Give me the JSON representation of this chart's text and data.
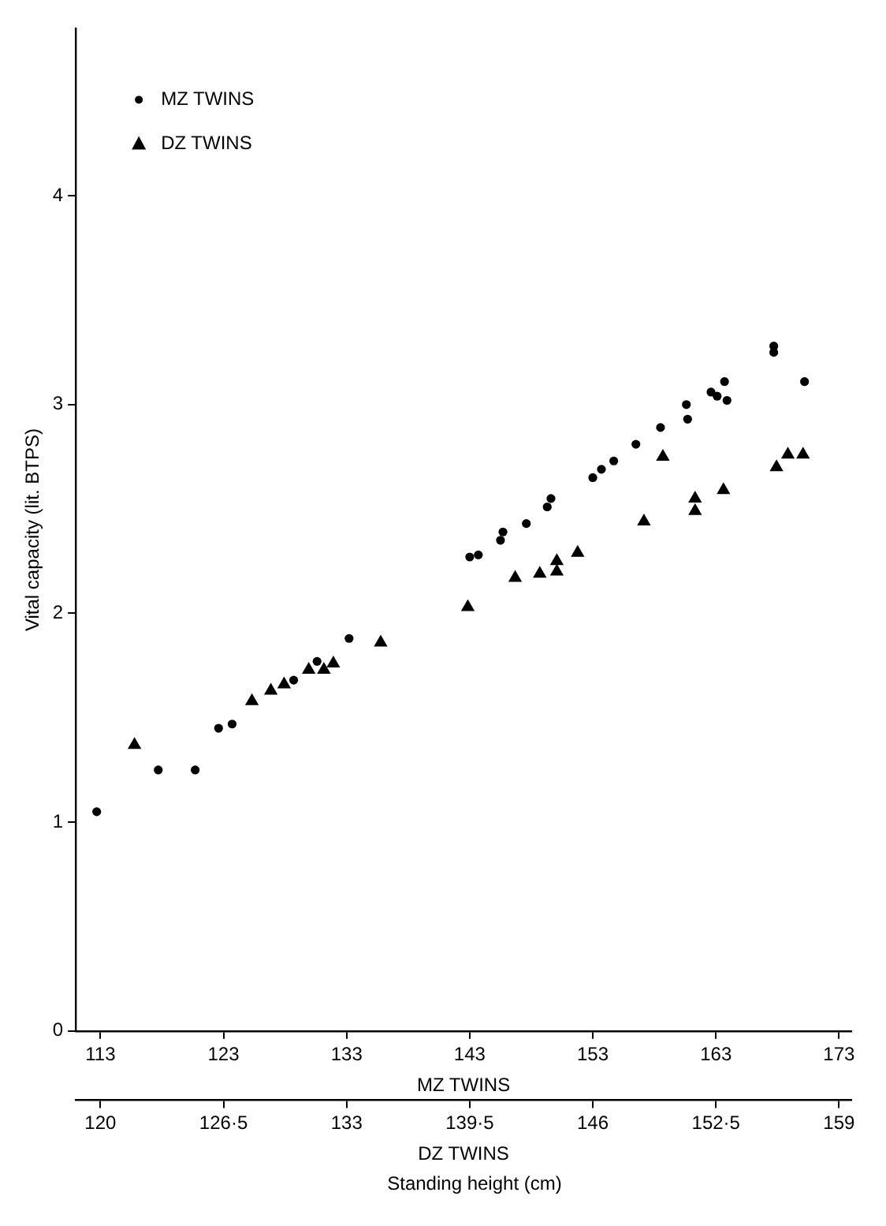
{
  "chart_data": {
    "type": "scatter",
    "ylabel": "Vital capacity (lit. BTPS)",
    "xlabel": "MZ TWINS",
    "x2label": "DZ TWINS",
    "annotations": [
      "Standing height (cm)"
    ],
    "xlim": [
      111,
      174
    ],
    "xticks": [
      113,
      123,
      133,
      143,
      153,
      163,
      173
    ],
    "x2lim": [
      118.7,
      159.65
    ],
    "x2ticks": [
      120,
      {
        "value": 126.5,
        "label": "126·5"
      },
      133,
      {
        "value": 139.5,
        "label": "139·5"
      },
      146,
      {
        "value": 152.5,
        "label": "152·5"
      },
      159
    ],
    "ylim": [
      0,
      4.8
    ],
    "yticks": [
      0,
      1,
      2,
      3,
      4
    ],
    "grid": false,
    "legend": "top left",
    "series": [
      {
        "name": "MZ TWINS",
        "color": "#000000",
        "marker": "circle",
        "x": [
          112.7,
          117.7,
          120.7,
          122.6,
          123.7,
          128.7,
          130.6,
          133.2,
          143.0,
          143.7,
          145.5,
          145.7,
          147.6,
          149.3,
          149.6,
          153.0,
          153.7,
          154.7,
          156.5,
          158.5,
          160.6,
          160.7,
          162.6,
          163.1,
          163.7,
          163.9,
          167.7,
          167.7,
          170.2
        ],
        "values": [
          1.05,
          1.25,
          1.25,
          1.45,
          1.47,
          1.68,
          1.77,
          1.88,
          2.27,
          2.28,
          2.35,
          2.39,
          2.43,
          2.51,
          2.55,
          2.65,
          2.69,
          2.73,
          2.81,
          2.89,
          3.0,
          2.93,
          3.06,
          3.04,
          3.11,
          3.02,
          3.28,
          3.25,
          3.11
        ]
      },
      {
        "name": "DZ TWINS",
        "color": "#000000",
        "marker": "triangle",
        "axis": "x2",
        "x": [
          121.8,
          128.0,
          129.0,
          129.7,
          131.0,
          131.8,
          132.3,
          134.8,
          139.4,
          141.9,
          143.2,
          144.1,
          144.1,
          145.2,
          148.7,
          149.7,
          151.4,
          151.4,
          152.9,
          155.7,
          156.3,
          157.1
        ],
        "values": [
          1.37,
          1.58,
          1.63,
          1.66,
          1.73,
          1.73,
          1.76,
          1.86,
          2.03,
          2.17,
          2.19,
          2.2,
          2.25,
          2.29,
          2.44,
          2.75,
          2.49,
          2.55,
          2.59,
          2.7,
          2.76,
          2.76
        ]
      }
    ]
  }
}
